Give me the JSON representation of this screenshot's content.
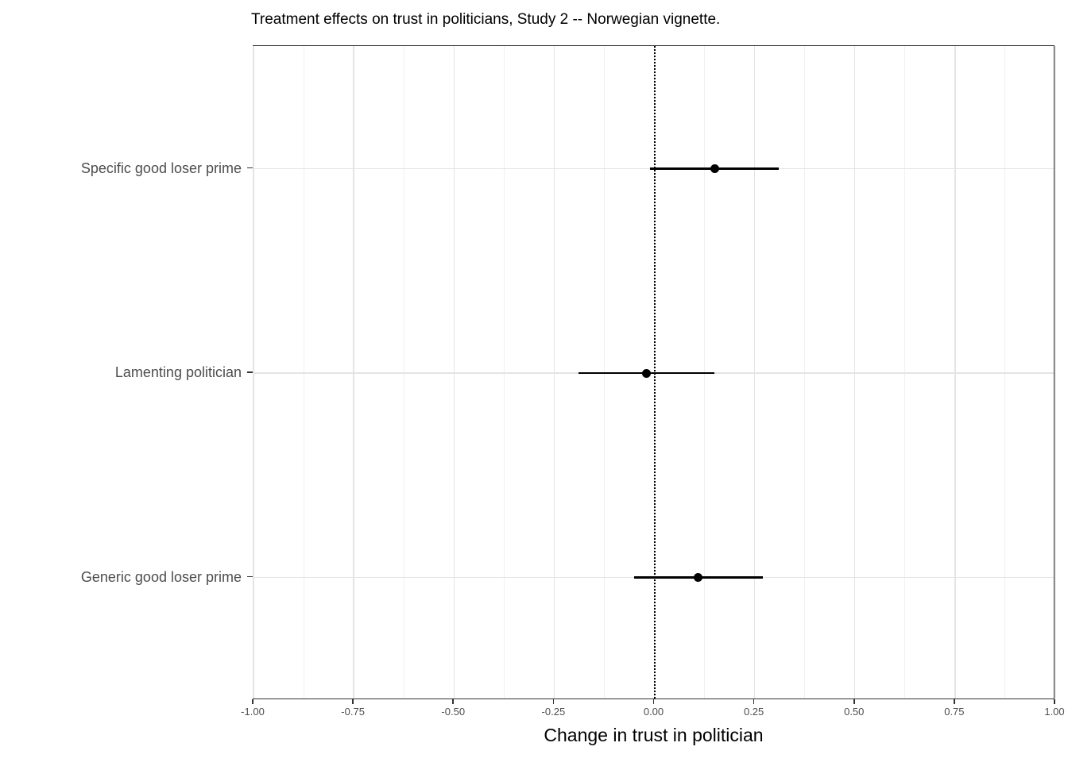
{
  "figure": {
    "background": "#ffffff"
  },
  "chart_data": {
    "type": "scatter",
    "variant": "coefficient-dot-whisker",
    "title": "Treatment effects on trust in politicians, Study 2 -- Norwegian vignette.",
    "xlabel": "Change in trust in politician",
    "ylabel": "",
    "xlim": [
      -1.0,
      1.0
    ],
    "x_ticks": [
      -1.0,
      -0.75,
      -0.5,
      -0.25,
      0.0,
      0.25,
      0.5,
      0.75,
      1.0
    ],
    "x_tick_labels": [
      "-1.00",
      "-0.75",
      "-0.50",
      "-0.25",
      "0.00",
      "0.25",
      "0.50",
      "0.75",
      "1.00"
    ],
    "x_minor_gridlines": [
      -0.875,
      -0.625,
      -0.375,
      -0.125,
      0.125,
      0.375,
      0.625,
      0.875
    ],
    "reference_line_x": 0.0,
    "reference_line_style": "dotted",
    "categories": [
      "Specific good loser prime",
      "Lamenting politician",
      "Generic good loser prime"
    ],
    "points": [
      {
        "label": "Specific good loser prime",
        "estimate": 0.15,
        "ci_low": -0.01,
        "ci_high": 0.31
      },
      {
        "label": "Lamenting politician",
        "estimate": -0.02,
        "ci_low": -0.19,
        "ci_high": 0.15
      },
      {
        "label": "Generic good loser prime",
        "estimate": 0.11,
        "ci_low": -0.05,
        "ci_high": 0.27
      }
    ],
    "legend": "none",
    "grid": {
      "horizontal_major_at_categories": true,
      "vertical_major_step": 0.25,
      "vertical_minor_step": 0.125,
      "major_color": "#e4e4e4",
      "minor_color": "#f0f0f0"
    },
    "colors": {
      "point": "#000000",
      "ci_line": "#000000",
      "reference_line": "#000000",
      "panel_border": "#333333",
      "axis_text": "#4d4d4d",
      "title_text": "#000000"
    }
  }
}
